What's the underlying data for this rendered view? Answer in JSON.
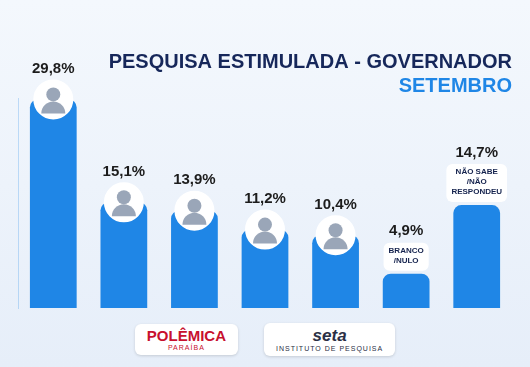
{
  "chart_data": {
    "type": "bar",
    "title": "PESQUISA ESTIMULADA - GOVERNADOR",
    "subtitle": "SETEMBRO",
    "categories": [
      null,
      null,
      null,
      null,
      null,
      "BRANCO /NULO",
      "NÃO SABE /NÃO RESPONDEU"
    ],
    "values": [
      29.8,
      15.1,
      13.9,
      11.2,
      10.4,
      4.9,
      14.7
    ],
    "value_labels": [
      "29,8%",
      "15,1%",
      "13,9%",
      "11,2%",
      "10,4%",
      "4,9%",
      "14,7%"
    ],
    "color": "#1f86e6",
    "ylim": [
      0,
      30
    ],
    "grid": false,
    "tick_labels": false,
    "data_labels": true,
    "annotations": [
      [
        "POLÊMICA",
        "PARAÍBA"
      ],
      [
        "seta",
        "INSTITUTO DE PESQUISA"
      ]
    ]
  }
}
